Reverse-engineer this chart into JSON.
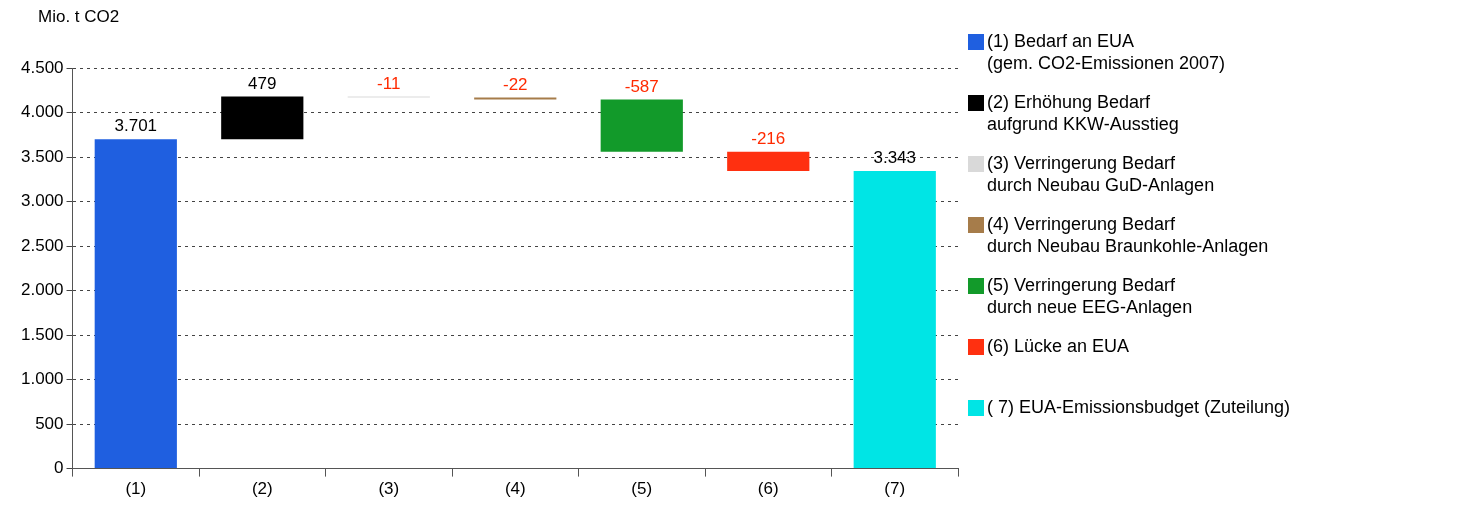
{
  "chart_data": {
    "type": "bar",
    "ylabel": "Mio. t CO2",
    "categories": [
      "(1)",
      "(2)",
      "(3)",
      "(4)",
      "(5)",
      "(6)",
      "(7)"
    ],
    "series": [
      {
        "name": "(1) Bedarf an EUA\n(gem. CO2-Emissionen 2007)",
        "color": "#1f5fe0",
        "values": [
          3701,
          null,
          null,
          null,
          null,
          null,
          null
        ],
        "base": [
          0,
          null,
          null,
          null,
          null,
          null,
          null
        ],
        "value_labels": [
          "3.701",
          null,
          null,
          null,
          null,
          null,
          null
        ]
      },
      {
        "name": "(2) Erhöhung Bedarf\naufgrund KKW-Ausstieg",
        "color": "#000000",
        "values": [
          null,
          479,
          null,
          null,
          null,
          null,
          null
        ],
        "base": [
          null,
          3701,
          null,
          null,
          null,
          null,
          null
        ],
        "value_labels": [
          null,
          "479",
          null,
          null,
          null,
          null,
          null
        ]
      },
      {
        "name": "(3) Verringerung Bedarf\ndurch Neubau GuD-Anlagen",
        "color": "#d9d9d9",
        "values": [
          null,
          null,
          -11,
          null,
          null,
          null,
          null
        ],
        "base": [
          null,
          null,
          4180,
          null,
          null,
          null,
          null
        ],
        "value_labels": [
          null,
          null,
          "-11",
          null,
          null,
          null,
          null
        ]
      },
      {
        "name": "(4) Verringerung Bedarf\ndurch Neubau Braunkohle-Anlagen",
        "color": "#a67c4a",
        "values": [
          null,
          null,
          null,
          -22,
          null,
          null,
          null
        ],
        "base": [
          null,
          null,
          null,
          4169,
          null,
          null,
          null
        ],
        "value_labels": [
          null,
          null,
          null,
          "-22",
          null,
          null,
          null
        ]
      },
      {
        "name": "(5) Verringerung Bedarf\ndurch neue EEG-Anlagen",
        "color": "#129a2a",
        "values": [
          null,
          null,
          null,
          null,
          -587,
          null,
          null
        ],
        "base": [
          null,
          null,
          null,
          null,
          4147,
          null,
          null
        ],
        "value_labels": [
          null,
          null,
          null,
          null,
          "-587",
          null,
          null
        ]
      },
      {
        "name": "(6) Lücke an EUA",
        "color": "#ff3010",
        "values": [
          null,
          null,
          null,
          null,
          null,
          -216,
          null
        ],
        "base": [
          null,
          null,
          null,
          null,
          null,
          3560,
          null
        ],
        "value_labels": [
          null,
          null,
          null,
          null,
          null,
          "-216",
          null
        ]
      },
      {
        "name": "( 7) EUA-Emissionsbudget (Zuteilung)",
        "color": "#00e5e5",
        "values": [
          null,
          null,
          null,
          null,
          null,
          null,
          3343
        ],
        "base": [
          null,
          null,
          null,
          null,
          null,
          null,
          0
        ],
        "value_labels": [
          null,
          null,
          null,
          null,
          null,
          null,
          "3.343"
        ]
      }
    ],
    "ylim": [
      0,
      4500
    ],
    "yticks": [
      {
        "value": 0,
        "label": "0"
      },
      {
        "value": 500,
        "label": "500"
      },
      {
        "value": 1000,
        "label": "1.000"
      },
      {
        "value": 1500,
        "label": "1.500"
      },
      {
        "value": 2000,
        "label": "2.000"
      },
      {
        "value": 2500,
        "label": "2.500"
      },
      {
        "value": 3000,
        "label": "3.000"
      },
      {
        "value": 3500,
        "label": "3.500"
      },
      {
        "value": 4000,
        "label": "4.000"
      },
      {
        "value": 4500,
        "label": "4.500"
      }
    ],
    "grid": "y",
    "legend": "right"
  }
}
